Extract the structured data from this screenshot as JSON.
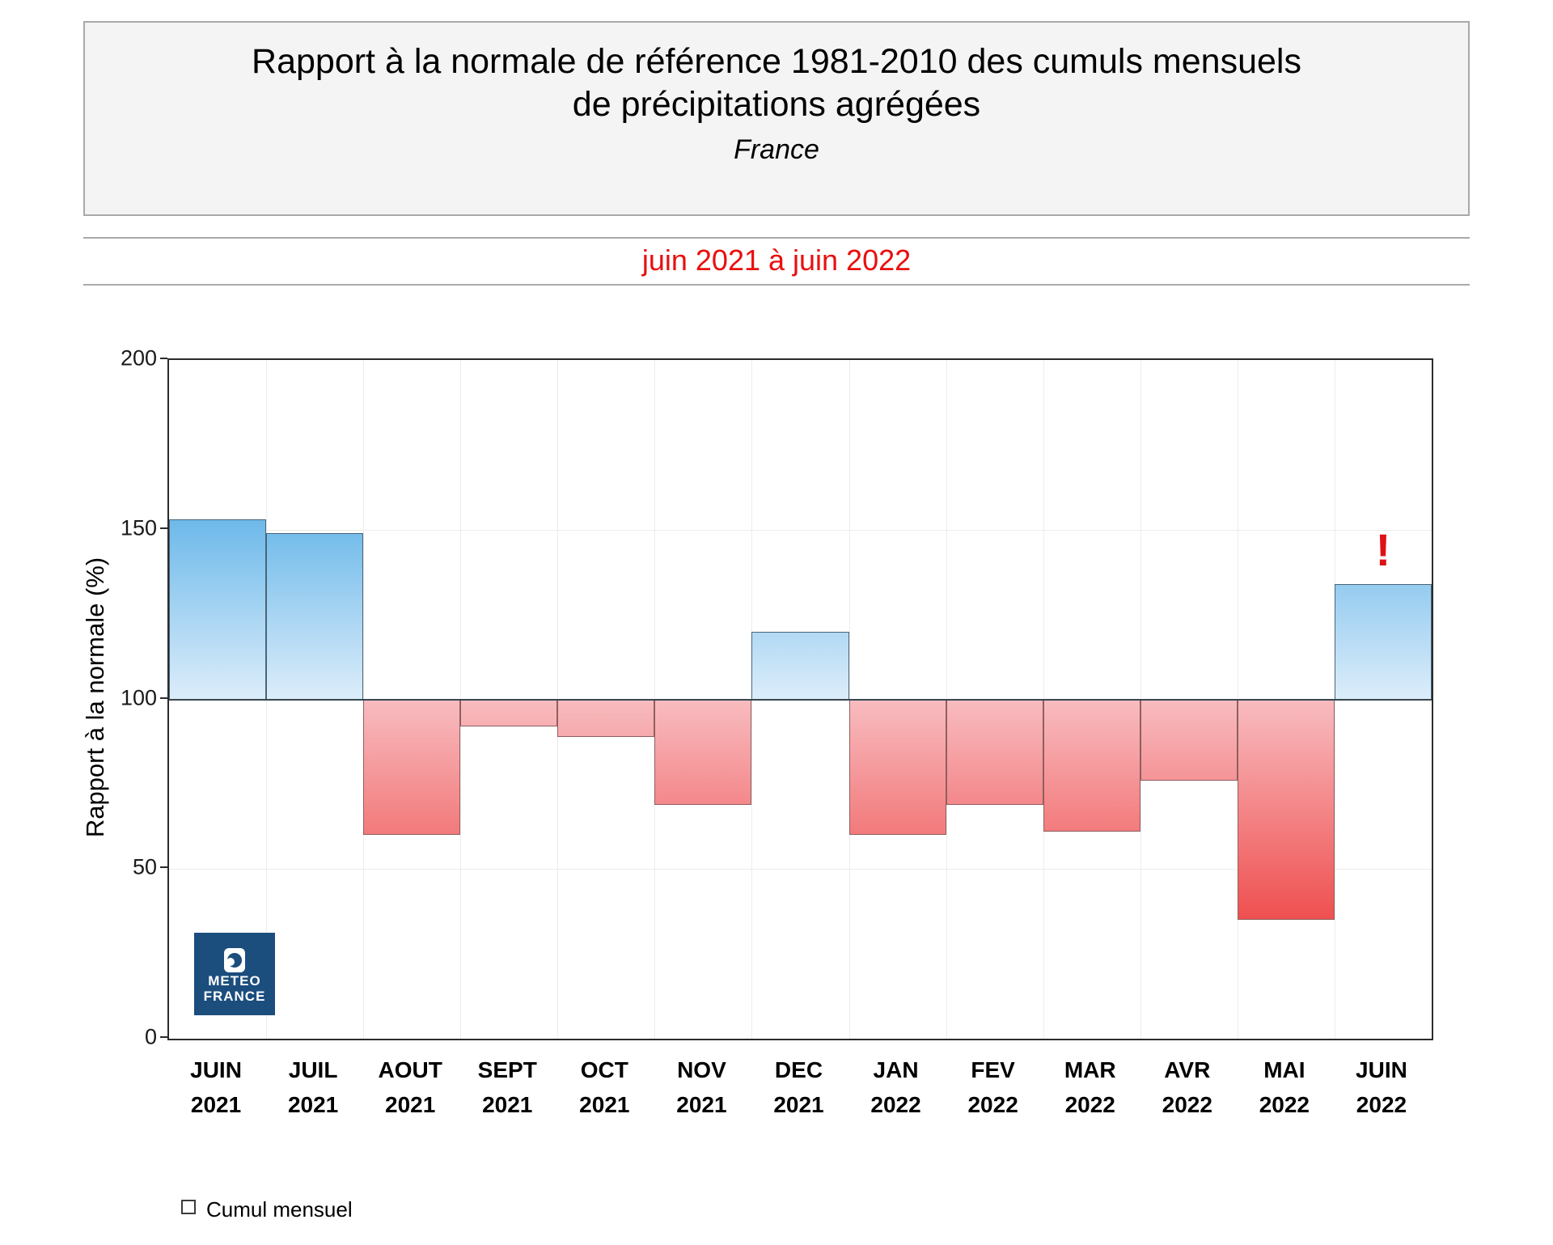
{
  "header": {
    "title_line1": "Rapport à la normale de référence 1981-2010 des cumuls mensuels",
    "title_line2": "de précipitations agrégées",
    "region": "France"
  },
  "subtitle": "juin 2021 à juin 2022",
  "legend": {
    "label": "Cumul mensuel"
  },
  "logo": {
    "line1": "METEO",
    "line2": "FRANCE"
  },
  "colors": {
    "subtitle_red": "#e90f0f",
    "header_border": "#a9a9a9",
    "axis": "#2b2b2b",
    "grid": "#ececec",
    "baseline": "#37474f",
    "logo_blue": "#1b4d7d",
    "annotation_red": "#de1117"
  },
  "chart_data": {
    "type": "bar",
    "title": "Rapport à la normale de référence 1981-2010 des cumuls mensuels de précipitations agrégées",
    "subtitle_region": "France",
    "period": "juin 2021 à juin 2022",
    "ylabel": "Rapport à la normale (%)",
    "ylim": [
      0,
      200
    ],
    "yticks": [
      0,
      50,
      100,
      150,
      200
    ],
    "baseline": 100,
    "grid": true,
    "legend_position": "bottom-left",
    "categories": [
      {
        "month": "JUIN",
        "year": "2021"
      },
      {
        "month": "JUIL",
        "year": "2021"
      },
      {
        "month": "AOUT",
        "year": "2021"
      },
      {
        "month": "SEPT",
        "year": "2021"
      },
      {
        "month": "OCT",
        "year": "2021"
      },
      {
        "month": "NOV",
        "year": "2021"
      },
      {
        "month": "DEC",
        "year": "2021"
      },
      {
        "month": "JAN",
        "year": "2022"
      },
      {
        "month": "FEV",
        "year": "2022"
      },
      {
        "month": "MAR",
        "year": "2022"
      },
      {
        "month": "AVR",
        "year": "2022"
      },
      {
        "month": "MAI",
        "year": "2022"
      },
      {
        "month": "JUIN",
        "year": "2022"
      }
    ],
    "values": [
      153,
      149,
      60,
      92,
      89,
      69,
      120,
      60,
      69,
      61,
      76,
      35,
      134
    ],
    "bar_colors": {
      "above_strong": "#6db9ea",
      "above_pale": "#dcedfa",
      "below_strong": "#ef5050",
      "below_pale": "#f8bcc0"
    },
    "annotations": [
      {
        "index": 12,
        "text": "!",
        "color": "#de1117"
      }
    ]
  }
}
